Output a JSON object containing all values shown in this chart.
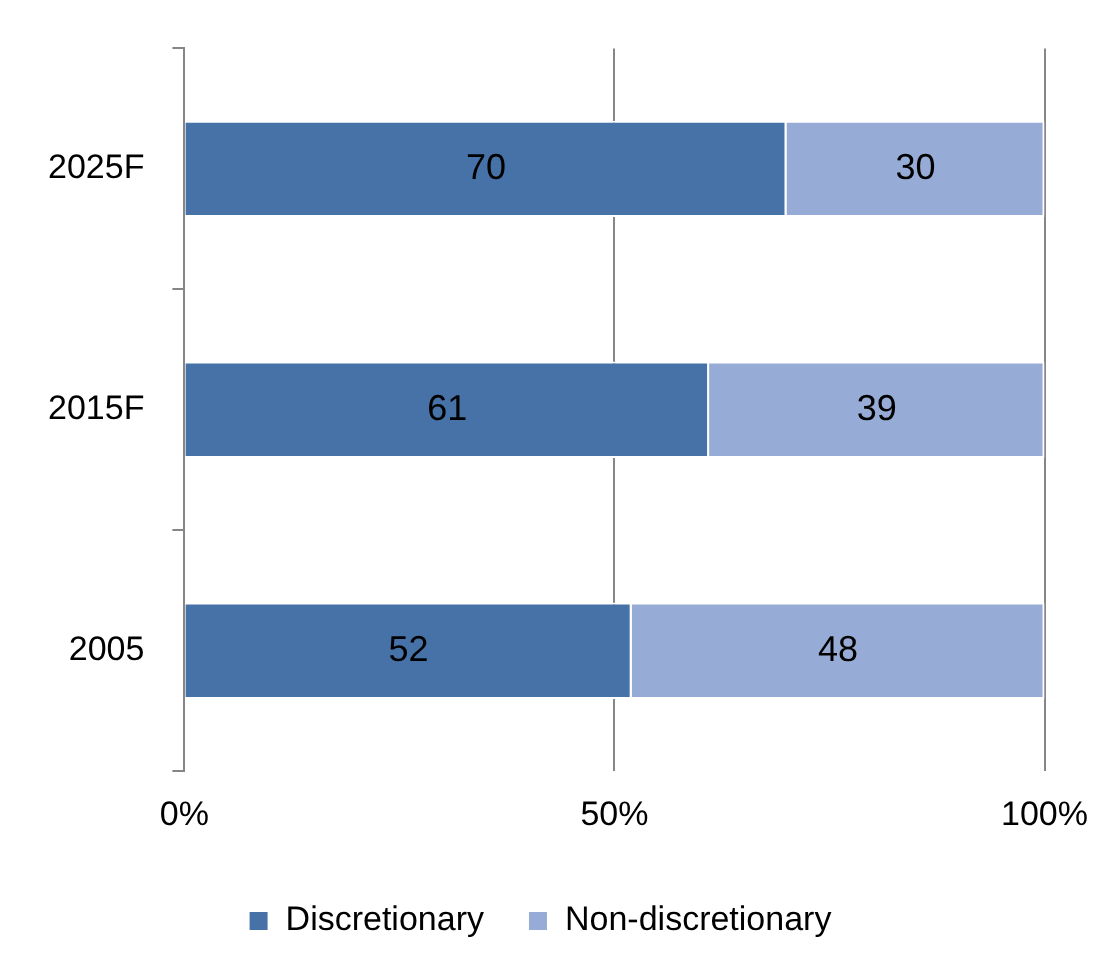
{
  "chart_data": {
    "type": "bar",
    "orientation": "horizontal",
    "stacked": true,
    "categories": [
      "2025F",
      "2015F",
      "2005"
    ],
    "series": [
      {
        "name": "Discretionary",
        "color": "#4672a8",
        "values": [
          70,
          61,
          52
        ]
      },
      {
        "name": "Non-discretionary",
        "color": "#96acd6",
        "values": [
          30,
          39,
          48
        ]
      }
    ],
    "xlim": [
      0,
      100
    ],
    "xticks": [
      {
        "value": 0,
        "label": "0%"
      },
      {
        "value": 50,
        "label": "50%"
      },
      {
        "value": 100,
        "label": "100%"
      }
    ],
    "grid": "x",
    "legend": "bottom",
    "data_labels": true
  }
}
